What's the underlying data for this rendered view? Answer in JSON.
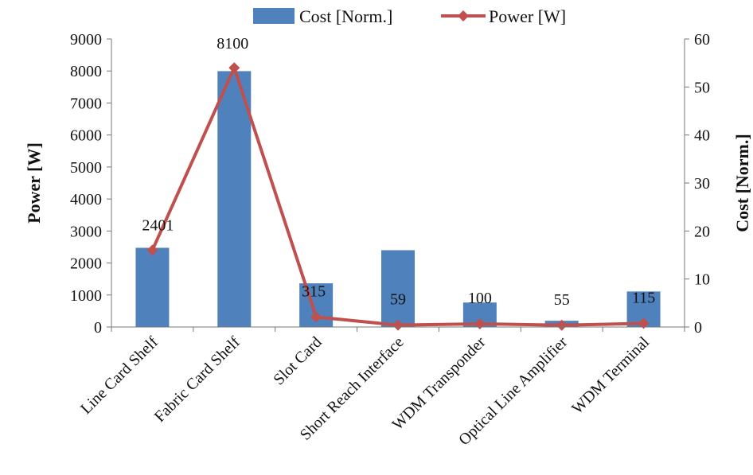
{
  "chart_data": {
    "type": "bar",
    "categories": [
      "Line Card Shelf",
      "Fabric Card Shelf",
      "Slot Card",
      "Short Reach Interface",
      "WDM Transponder",
      "Optical Line Amplifier",
      "WDM Terminal"
    ],
    "series": [
      {
        "name": "Cost [Norm.]",
        "type": "bar",
        "axis": "right",
        "color": "#4F81BD",
        "values": [
          16.5,
          53.3,
          9.1,
          16,
          5.1,
          1.3,
          7.4
        ]
      },
      {
        "name": "Power [W]",
        "type": "line",
        "axis": "left",
        "color": "#C0504D",
        "values": [
          2401,
          8100,
          315,
          59,
          100,
          55,
          115
        ],
        "data_labels": [
          "2401",
          "8100",
          "315",
          "59",
          "100",
          "55",
          "115"
        ]
      }
    ],
    "ylabel_left": "Power [W]",
    "ylabel_right": "Cost [Norm.]",
    "ylim_left": [
      0,
      9000
    ],
    "ylim_right": [
      0,
      60
    ],
    "yticks_left": [
      "0",
      "1000",
      "2000",
      "3000",
      "4000",
      "5000",
      "6000",
      "7000",
      "8000",
      "9000"
    ],
    "yticks_right": [
      "0",
      "10",
      "20",
      "30",
      "40",
      "50",
      "60"
    ],
    "legend_position": "top-center",
    "grid": false
  }
}
